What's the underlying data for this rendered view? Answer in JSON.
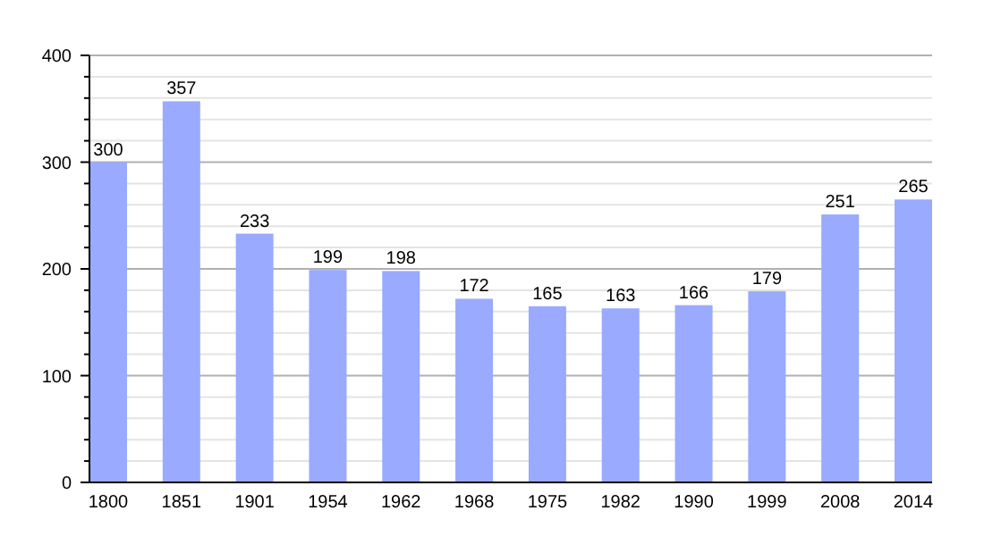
{
  "chart_data": {
    "type": "bar",
    "categories": [
      "1800",
      "1851",
      "1901",
      "1954",
      "1962",
      "1968",
      "1975",
      "1982",
      "1990",
      "1999",
      "2008",
      "2014"
    ],
    "values": [
      300,
      357,
      233,
      199,
      198,
      172,
      165,
      163,
      166,
      179,
      251,
      265
    ],
    "color": "#99aaff",
    "data_labels": true,
    "grid": "y",
    "ylim": [
      0,
      400
    ],
    "yticks": [
      0,
      {
        "value": 20,
        "label": null
      },
      {
        "value": 40,
        "label": null
      },
      {
        "value": 60,
        "label": null
      },
      {
        "value": 80,
        "label": null
      },
      100,
      {
        "value": 120,
        "label": null
      },
      {
        "value": 140,
        "label": null
      },
      {
        "value": 160,
        "label": null
      },
      {
        "value": 180,
        "label": null
      },
      200,
      {
        "value": 220,
        "label": null
      },
      {
        "value": 240,
        "label": null
      },
      {
        "value": 260,
        "label": null
      },
      {
        "value": 280,
        "label": null
      },
      300,
      {
        "value": 320,
        "label": null
      },
      {
        "value": 340,
        "label": null
      },
      {
        "value": 360,
        "label": null
      },
      {
        "value": 380,
        "label": null
      },
      400
    ]
  }
}
